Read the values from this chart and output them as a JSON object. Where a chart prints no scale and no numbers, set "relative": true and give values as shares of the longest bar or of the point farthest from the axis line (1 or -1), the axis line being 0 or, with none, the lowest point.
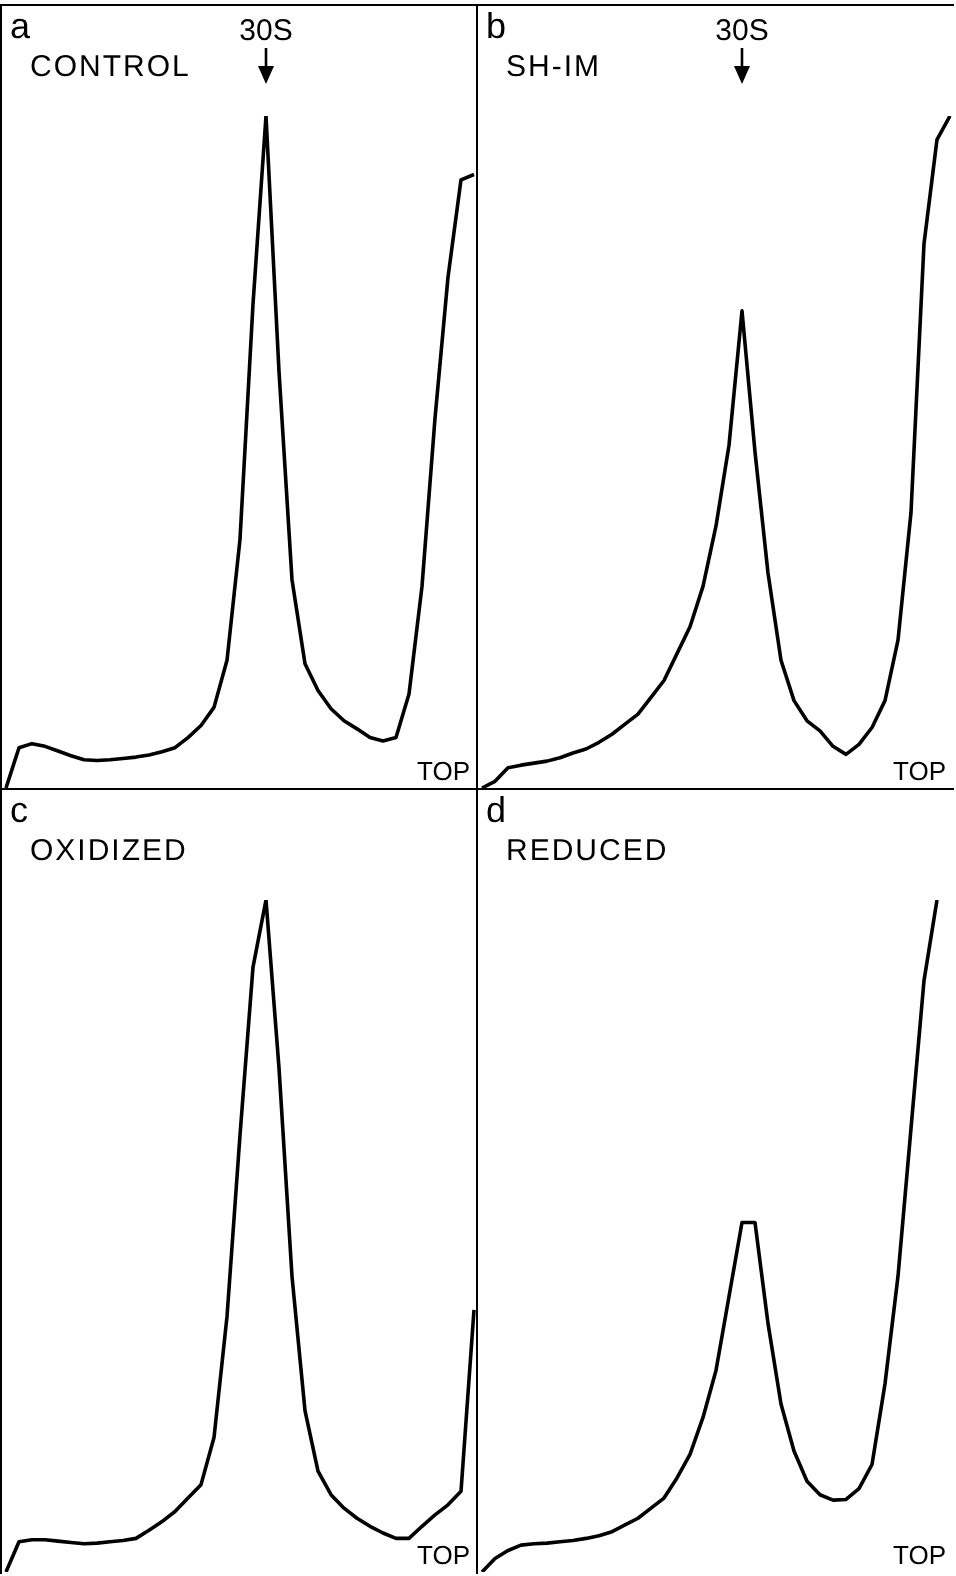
{
  "chart_data": [
    {
      "type": "line",
      "relative": true,
      "title": "a",
      "subtitle": "CONTROL",
      "xlabel": "TOP",
      "annotations": [
        "30S"
      ],
      "marker": "none",
      "color": "#000000",
      "categories": [
        null,
        null,
        null,
        null,
        null,
        null,
        null,
        null,
        null,
        null,
        null,
        null,
        null,
        null,
        null,
        null,
        null,
        null,
        null,
        null,
        null,
        null,
        null,
        null,
        null,
        null,
        null,
        null,
        null,
        null,
        null,
        null,
        null,
        null,
        null,
        null,
        null
      ],
      "values": [
        0,
        0.06,
        0.066,
        0.062,
        0.055,
        0.048,
        0.042,
        0.041,
        0.042,
        0.044,
        0.046,
        0.049,
        0.054,
        0.06,
        0.075,
        0.093,
        0.12,
        0.19,
        0.37,
        0.72,
        1,
        0.62,
        0.31,
        0.185,
        0.145,
        0.118,
        0.1,
        0.088,
        0.075,
        0.07,
        0.075,
        0.14,
        0.3,
        0.55,
        0.76,
        0.905,
        0.913
      ]
    },
    {
      "type": "line",
      "relative": true,
      "title": "b",
      "subtitle": "SH-IM",
      "xlabel": "TOP",
      "annotations": [
        "30S"
      ],
      "marker": "none",
      "color": "#000000",
      "categories": [
        null,
        null,
        null,
        null,
        null,
        null,
        null,
        null,
        null,
        null,
        null,
        null,
        null,
        null,
        null,
        null,
        null,
        null,
        null,
        null,
        null,
        null,
        null,
        null,
        null,
        null,
        null,
        null,
        null,
        null,
        null,
        null,
        null,
        null,
        null,
        null,
        null
      ],
      "values": [
        0,
        0.01,
        0.03,
        0.034,
        0.037,
        0.04,
        0.045,
        0.052,
        0.058,
        0.068,
        0.08,
        0.095,
        0.11,
        0.135,
        0.16,
        0.2,
        0.24,
        0.3,
        0.39,
        0.51,
        0.71,
        0.5,
        0.32,
        0.19,
        0.13,
        0.1,
        0.085,
        0.062,
        0.05,
        0.065,
        0.09,
        0.13,
        0.22,
        0.41,
        0.81,
        0.965,
        1
      ]
    },
    {
      "type": "line",
      "relative": true,
      "title": "c",
      "subtitle": "OXIDIZED",
      "xlabel": "TOP",
      "marker": "none",
      "color": "#000000",
      "categories": [
        null,
        null,
        null,
        null,
        null,
        null,
        null,
        null,
        null,
        null,
        null,
        null,
        null,
        null,
        null,
        null,
        null,
        null,
        null,
        null,
        null,
        null,
        null,
        null,
        null,
        null,
        null,
        null,
        null,
        null,
        null,
        null,
        null,
        null,
        null,
        null,
        null
      ],
      "values": [
        0,
        0.045,
        0.048,
        0.048,
        0.046,
        0.044,
        0.042,
        0.043,
        0.045,
        0.047,
        0.05,
        0.062,
        0.075,
        0.09,
        0.11,
        0.13,
        0.2,
        0.38,
        0.65,
        0.9,
        1,
        0.75,
        0.44,
        0.24,
        0.15,
        0.115,
        0.095,
        0.08,
        0.068,
        0.058,
        0.05,
        0.05,
        0.068,
        0.085,
        0.1,
        0.12,
        0.39
      ]
    },
    {
      "type": "line",
      "relative": true,
      "title": "d",
      "subtitle": "REDUCED",
      "xlabel": "TOP",
      "marker": "none",
      "color": "#000000",
      "categories": [
        null,
        null,
        null,
        null,
        null,
        null,
        null,
        null,
        null,
        null,
        null,
        null,
        null,
        null,
        null,
        null,
        null,
        null,
        null,
        null,
        null,
        null,
        null,
        null,
        null,
        null,
        null,
        null,
        null,
        null,
        null,
        null,
        null,
        null,
        null,
        null,
        null
      ],
      "values": [
        0,
        0.02,
        0.032,
        0.04,
        0.042,
        0.043,
        0.045,
        0.047,
        0.05,
        0.054,
        0.06,
        0.07,
        0.08,
        0.095,
        0.11,
        0.14,
        0.175,
        0.23,
        0.3,
        0.41,
        0.52,
        0.52,
        0.37,
        0.25,
        0.18,
        0.135,
        0.115,
        0.107,
        0.108,
        0.124,
        0.16,
        0.28,
        0.44,
        0.66,
        0.88,
        1,
        null
      ]
    }
  ]
}
